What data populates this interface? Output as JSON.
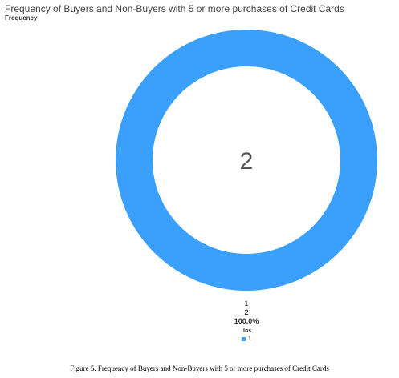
{
  "chart_data": {
    "type": "pie",
    "title": "Frequency of Buyers and Non-Buyers with 5 or more purchases of Credit Cards",
    "subtitle": "Frequency",
    "center_label": "2",
    "categories": [
      "1"
    ],
    "values": [
      2
    ],
    "slices": [
      {
        "category": "1",
        "value_label": "2",
        "percent_label": "100.0%",
        "color": "#3aa0fb"
      }
    ],
    "legend": {
      "title": "Ins",
      "placement": "bottom-center",
      "entries": [
        "1"
      ]
    }
  },
  "caption": "Figure 5. Frequency of Buyers and Non-Buyers with 5 or more purchases of Credit Cards"
}
